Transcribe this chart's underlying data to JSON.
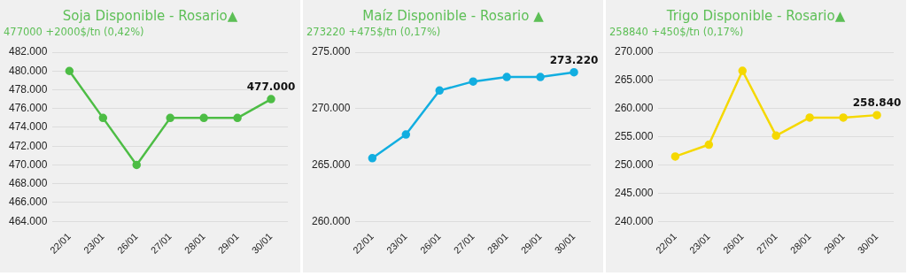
{
  "chart_data": [
    {
      "type": "line",
      "title": "Soja Disponible - Rosario▲",
      "subtitle": "477000 +2000$/tn (0,42%)",
      "categories": [
        "22/01",
        "23/01",
        "26/01",
        "27/01",
        "28/01",
        "29/01",
        "30/01"
      ],
      "series": [
        {
          "color": "#4dbd45",
          "values": [
            480000,
            475000,
            470000,
            475000,
            475000,
            475000,
            477000
          ],
          "value_labels": [
            null,
            null,
            null,
            null,
            null,
            null,
            "477.000"
          ]
        }
      ],
      "ylim": [
        464000,
        482000
      ],
      "yticks": [
        {
          "value": 464000,
          "label": "464.000"
        },
        {
          "value": 466000,
          "label": "466.000"
        },
        {
          "value": 468000,
          "label": "468.000"
        },
        {
          "value": 470000,
          "label": "470.000"
        },
        {
          "value": 472000,
          "label": "472.000"
        },
        {
          "value": 474000,
          "label": "474.000"
        },
        {
          "value": 476000,
          "label": "476.000"
        },
        {
          "value": 478000,
          "label": "478.000"
        },
        {
          "value": 480000,
          "label": "480.000"
        },
        {
          "value": 482000,
          "label": "482.000"
        }
      ],
      "grid": "y",
      "marker": "circle",
      "legend": false
    },
    {
      "type": "line",
      "title": "Maíz Disponible - Rosario ▲",
      "subtitle": "273220 +475$/tn (0,17%)",
      "categories": [
        "22/01",
        "23/01",
        "26/01",
        "27/01",
        "28/01",
        "29/01",
        "30/01"
      ],
      "series": [
        {
          "color": "#12aee0",
          "values": [
            265600,
            267700,
            271600,
            272400,
            272800,
            272800,
            273220
          ],
          "value_labels": [
            null,
            null,
            null,
            null,
            null,
            null,
            "273.220"
          ]
        }
      ],
      "ylim": [
        260000,
        275000
      ],
      "yticks": [
        {
          "value": 260000,
          "label": "260.000"
        },
        {
          "value": 265000,
          "label": "265.000"
        },
        {
          "value": 270000,
          "label": "270.000"
        },
        {
          "value": 275000,
          "label": "275.000"
        }
      ],
      "grid": "y",
      "marker": "circle",
      "legend": false
    },
    {
      "type": "line",
      "title": "Trigo Disponible - Rosario▲",
      "subtitle": "258840 +450$/tn (0,17%)",
      "categories": [
        "22/01",
        "23/01",
        "26/01",
        "27/01",
        "28/01",
        "29/01",
        "30/01"
      ],
      "series": [
        {
          "color": "#f5d800",
          "values": [
            251500,
            253600,
            266700,
            255200,
            258400,
            258400,
            258840
          ],
          "value_labels": [
            null,
            null,
            null,
            null,
            null,
            null,
            "258.840"
          ]
        }
      ],
      "ylim": [
        240000,
        270000
      ],
      "yticks": [
        {
          "value": 240000,
          "label": "240.000"
        },
        {
          "value": 245000,
          "label": "245.000"
        },
        {
          "value": 250000,
          "label": "250.000"
        },
        {
          "value": 255000,
          "label": "255.000"
        },
        {
          "value": 260000,
          "label": "260.000"
        },
        {
          "value": 265000,
          "label": "265.000"
        },
        {
          "value": 270000,
          "label": "270.000"
        }
      ],
      "grid": "y",
      "marker": "circle",
      "legend": false
    }
  ]
}
